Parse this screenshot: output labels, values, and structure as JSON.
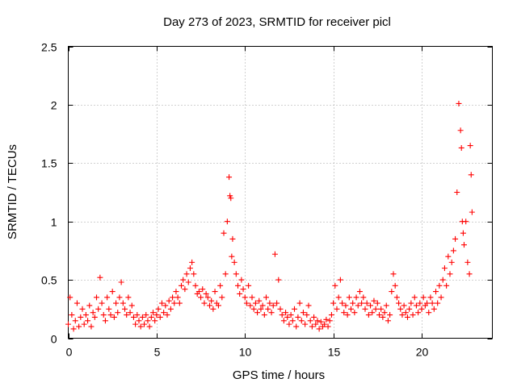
{
  "chart_data": {
    "type": "scatter",
    "title": "Day 273 of 2023, SRMTID for receiver picl",
    "xlabel": "GPS time / hours",
    "ylabel": "SRMTID / TECUs",
    "xlim": [
      0,
      24
    ],
    "ylim": [
      0,
      2.5
    ],
    "x_ticks": [
      0,
      5,
      10,
      15,
      20
    ],
    "x_tick_labels": [
      "0",
      "5",
      "10",
      "15",
      "20"
    ],
    "y_ticks": [
      0,
      0.5,
      1,
      1.5,
      2,
      2.5
    ],
    "y_tick_labels": [
      "0",
      "0.5",
      "1",
      "1.5",
      "2",
      "2.5"
    ],
    "grid": true,
    "marker": "plus",
    "color": "#ff0000",
    "series": [
      {
        "name": "SRMTID",
        "x": [
          0.0,
          0.1,
          0.2,
          0.3,
          0.4,
          0.5,
          0.6,
          0.7,
          0.8,
          0.9,
          1.0,
          1.1,
          1.2,
          1.3,
          1.4,
          1.5,
          1.6,
          1.7,
          1.8,
          1.9,
          2.0,
          2.1,
          2.2,
          2.3,
          2.4,
          2.5,
          2.6,
          2.7,
          2.8,
          2.9,
          3.0,
          3.1,
          3.2,
          3.3,
          3.4,
          3.5,
          3.6,
          3.7,
          3.8,
          3.9,
          4.0,
          4.1,
          4.2,
          4.3,
          4.4,
          4.5,
          4.6,
          4.7,
          4.8,
          4.9,
          5.0,
          5.1,
          5.2,
          5.3,
          5.4,
          5.5,
          5.6,
          5.7,
          5.8,
          5.9,
          6.0,
          6.1,
          6.2,
          6.3,
          6.4,
          6.5,
          6.6,
          6.7,
          6.8,
          6.9,
          7.0,
          7.1,
          7.2,
          7.3,
          7.4,
          7.5,
          7.6,
          7.7,
          7.8,
          7.9,
          8.0,
          8.1,
          8.2,
          8.3,
          8.4,
          8.5,
          8.6,
          8.7,
          8.8,
          8.9,
          9.0,
          9.1,
          9.15,
          9.2,
          9.25,
          9.3,
          9.4,
          9.5,
          9.6,
          9.7,
          9.8,
          9.9,
          10.0,
          10.1,
          10.2,
          10.3,
          10.4,
          10.5,
          10.6,
          10.7,
          10.8,
          10.9,
          11.0,
          11.1,
          11.2,
          11.3,
          11.4,
          11.5,
          11.6,
          11.7,
          11.8,
          11.9,
          12.0,
          12.1,
          12.2,
          12.3,
          12.4,
          12.5,
          12.6,
          12.7,
          12.8,
          12.9,
          13.0,
          13.1,
          13.2,
          13.3,
          13.4,
          13.5,
          13.6,
          13.7,
          13.8,
          13.9,
          14.0,
          14.1,
          14.2,
          14.3,
          14.4,
          14.5,
          14.6,
          14.7,
          14.8,
          14.9,
          15.0,
          15.1,
          15.2,
          15.3,
          15.4,
          15.5,
          15.6,
          15.7,
          15.8,
          15.9,
          16.0,
          16.1,
          16.2,
          16.3,
          16.4,
          16.5,
          16.6,
          16.7,
          16.8,
          16.9,
          17.0,
          17.1,
          17.2,
          17.3,
          17.4,
          17.5,
          17.6,
          17.7,
          17.8,
          17.9,
          18.0,
          18.1,
          18.2,
          18.3,
          18.4,
          18.5,
          18.6,
          18.7,
          18.8,
          18.9,
          19.0,
          19.1,
          19.2,
          19.3,
          19.4,
          19.5,
          19.6,
          19.7,
          19.8,
          19.9,
          20.0,
          20.1,
          20.2,
          20.3,
          20.4,
          20.5,
          20.6,
          20.7,
          20.8,
          20.9,
          21.0,
          21.1,
          21.2,
          21.3,
          21.4,
          21.5,
          21.6,
          21.7,
          21.8,
          21.9,
          22.0,
          22.1,
          22.2,
          22.25,
          22.3,
          22.35,
          22.4,
          22.5,
          22.6,
          22.7,
          22.75,
          22.8,
          22.85
        ],
        "y": [
          0.12,
          0.35,
          0.2,
          0.08,
          0.15,
          0.3,
          0.1,
          0.18,
          0.25,
          0.12,
          0.2,
          0.15,
          0.28,
          0.1,
          0.22,
          0.18,
          0.35,
          0.25,
          0.52,
          0.3,
          0.2,
          0.15,
          0.35,
          0.25,
          0.2,
          0.4,
          0.18,
          0.3,
          0.22,
          0.35,
          0.48,
          0.3,
          0.25,
          0.2,
          0.35,
          0.22,
          0.28,
          0.18,
          0.12,
          0.2,
          0.15,
          0.1,
          0.18,
          0.12,
          0.2,
          0.15,
          0.1,
          0.18,
          0.22,
          0.15,
          0.2,
          0.25,
          0.18,
          0.3,
          0.22,
          0.28,
          0.2,
          0.32,
          0.25,
          0.35,
          0.3,
          0.4,
          0.35,
          0.3,
          0.45,
          0.5,
          0.42,
          0.55,
          0.48,
          0.6,
          0.65,
          0.55,
          0.45,
          0.38,
          0.4,
          0.35,
          0.42,
          0.3,
          0.38,
          0.35,
          0.28,
          0.32,
          0.25,
          0.4,
          0.3,
          0.28,
          0.45,
          0.35,
          0.9,
          0.55,
          1.0,
          1.38,
          1.22,
          1.2,
          0.7,
          0.85,
          0.65,
          0.55,
          0.45,
          0.38,
          0.5,
          0.42,
          0.35,
          0.3,
          0.45,
          0.28,
          0.35,
          0.25,
          0.3,
          0.22,
          0.32,
          0.25,
          0.28,
          0.2,
          0.35,
          0.25,
          0.3,
          0.22,
          0.28,
          0.72,
          0.3,
          0.5,
          0.25,
          0.2,
          0.15,
          0.22,
          0.18,
          0.12,
          0.2,
          0.15,
          0.25,
          0.1,
          0.18,
          0.3,
          0.15,
          0.22,
          0.12,
          0.2,
          0.28,
          0.15,
          0.1,
          0.18,
          0.12,
          0.15,
          0.08,
          0.14,
          0.1,
          0.12,
          0.16,
          0.1,
          0.15,
          0.2,
          0.3,
          0.45,
          0.25,
          0.35,
          0.5,
          0.3,
          0.22,
          0.28,
          0.2,
          0.35,
          0.25,
          0.3,
          0.22,
          0.35,
          0.28,
          0.4,
          0.3,
          0.35,
          0.25,
          0.3,
          0.2,
          0.28,
          0.22,
          0.32,
          0.25,
          0.3,
          0.2,
          0.25,
          0.18,
          0.22,
          0.28,
          0.15,
          0.2,
          0.4,
          0.55,
          0.45,
          0.35,
          0.3,
          0.25,
          0.2,
          0.28,
          0.22,
          0.18,
          0.25,
          0.3,
          0.2,
          0.35,
          0.28,
          0.22,
          0.3,
          0.25,
          0.35,
          0.28,
          0.3,
          0.22,
          0.35,
          0.3,
          0.25,
          0.4,
          0.3,
          0.45,
          0.35,
          0.5,
          0.6,
          0.45,
          0.7,
          0.55,
          0.65,
          0.75,
          0.85,
          1.25,
          2.01,
          1.78,
          1.63,
          1.0,
          0.9,
          0.8,
          1.0,
          0.65,
          0.55,
          1.65,
          1.4,
          1.08
        ]
      }
    ]
  }
}
